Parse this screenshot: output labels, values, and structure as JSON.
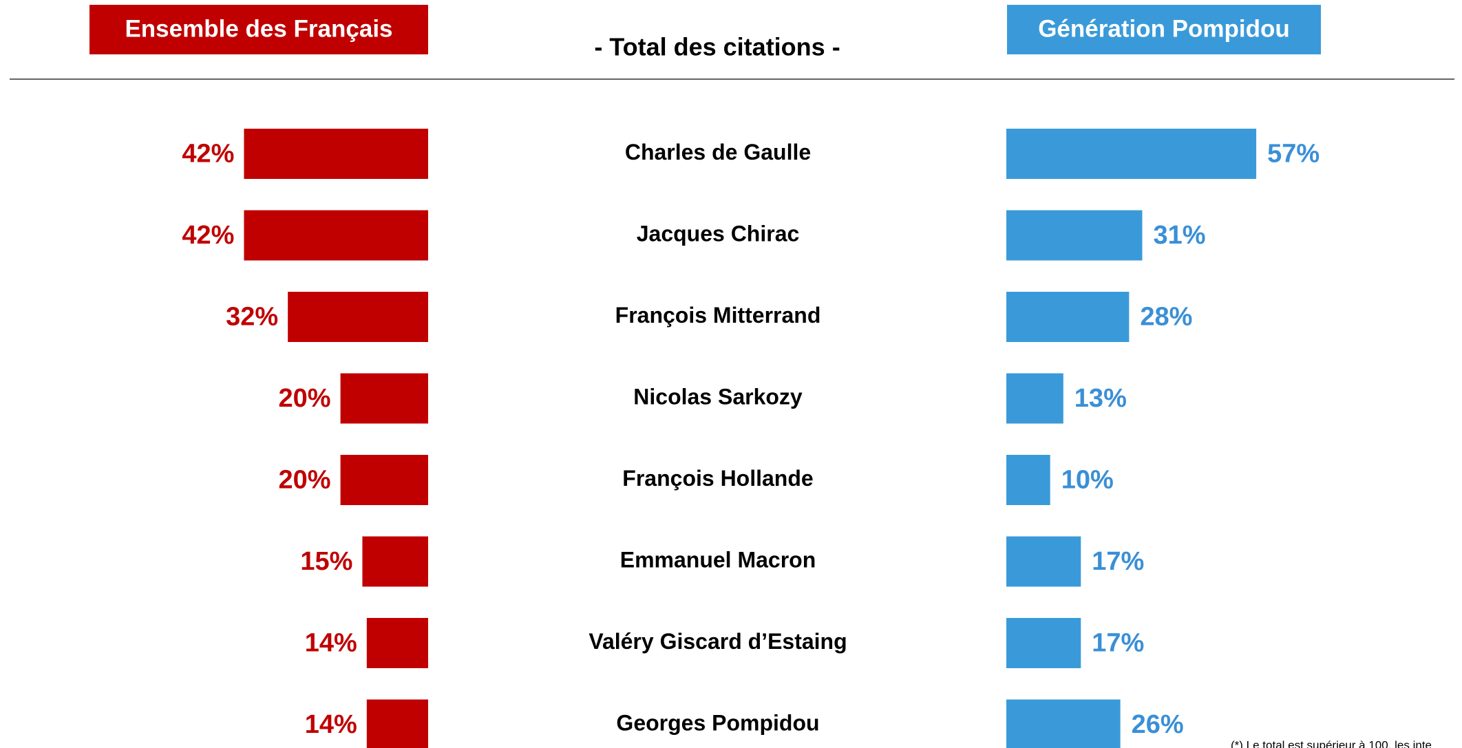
{
  "chart_data": {
    "type": "butterfly-bar",
    "title": "- Total des citations -",
    "categories": [
      "Charles de Gaulle",
      "Jacques Chirac",
      "François Mitterrand",
      "Nicolas Sarkozy",
      "François Hollande",
      "Emmanuel Macron",
      "Valéry Giscard d’Estaing",
      "Georges Pompidou"
    ],
    "series": [
      {
        "name": "Ensemble des Français",
        "color": "#c00000",
        "values": [
          42,
          42,
          32,
          20,
          20,
          15,
          14,
          14
        ],
        "value_labels": [
          "42%",
          "42%",
          "32%",
          "20%",
          "20%",
          "15%",
          "14%",
          "14%"
        ]
      },
      {
        "name": "Génération Pompidou",
        "color": "#3a9ad9",
        "values": [
          57,
          31,
          28,
          13,
          10,
          17,
          17,
          26
        ],
        "value_labels": [
          "57%",
          "31%",
          "28%",
          "13%",
          "10%",
          "17%",
          "17%",
          "26%"
        ]
      }
    ],
    "footnote": "(*) Le total est supérieur à 100, les inte"
  }
}
